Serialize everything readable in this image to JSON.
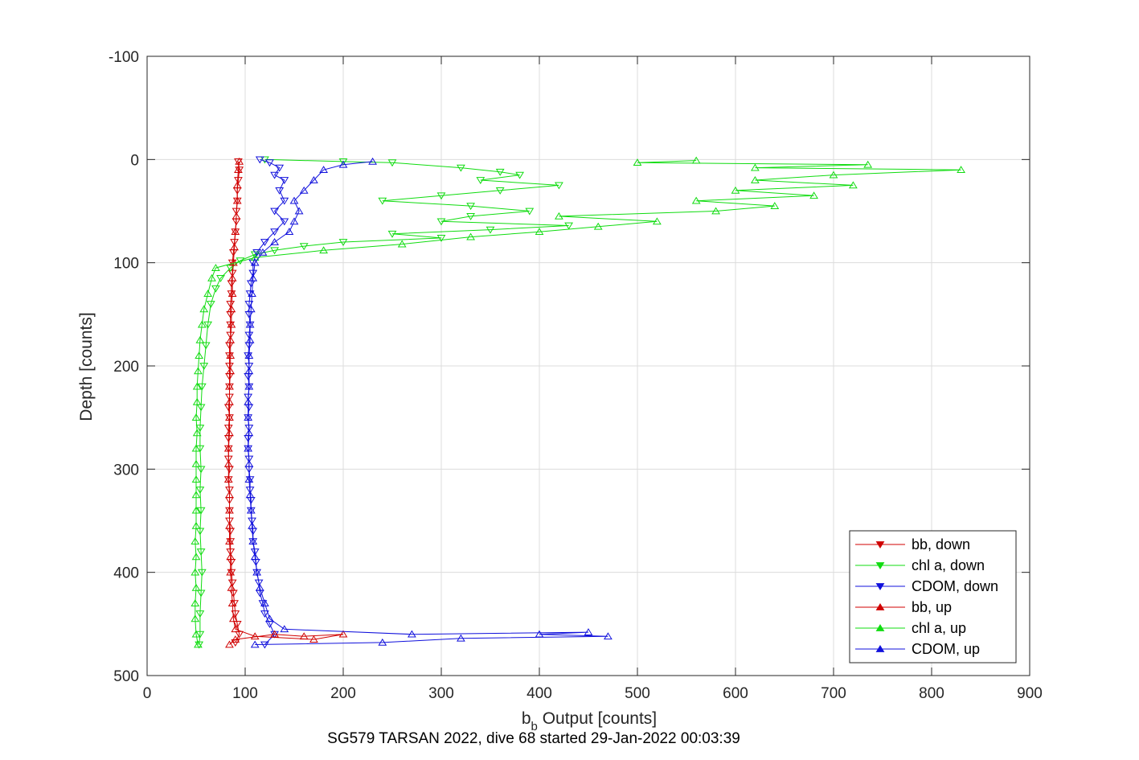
{
  "chart_data": {
    "type": "line",
    "title": "",
    "subtitle": "SG579 TARSAN 2022, dive 68 started 29-Jan-2022 00:03:39",
    "xlabel_main": "b",
    "xlabel_sub": "b",
    "xlabel_rest": " Output [counts]",
    "ylabel": "Depth [counts]",
    "xlim": [
      0,
      900
    ],
    "ylim": [
      -100,
      500
    ],
    "y_reversed": true,
    "grid": true,
    "legend_placement": "bottom-right",
    "xticks": [
      "0",
      "100",
      "200",
      "300",
      "400",
      "500",
      "600",
      "700",
      "800",
      "900"
    ],
    "yticks": [
      "-100",
      "0",
      "100",
      "200",
      "300",
      "400",
      "500"
    ],
    "series": [
      {
        "name": "bb, down",
        "color": "#d00000",
        "marker": "triangle-down",
        "points": [
          [
            93,
            2
          ],
          [
            94,
            10
          ],
          [
            93,
            20
          ],
          [
            92,
            30
          ],
          [
            92,
            40
          ],
          [
            91,
            50
          ],
          [
            91,
            60
          ],
          [
            90,
            70
          ],
          [
            89,
            80
          ],
          [
            88,
            90
          ],
          [
            87,
            100
          ],
          [
            87,
            110
          ],
          [
            86,
            120
          ],
          [
            86,
            130
          ],
          [
            85,
            140
          ],
          [
            85,
            150
          ],
          [
            85,
            160
          ],
          [
            85,
            170
          ],
          [
            84,
            180
          ],
          [
            84,
            190
          ],
          [
            84,
            200
          ],
          [
            84,
            210
          ],
          [
            84,
            220
          ],
          [
            84,
            230
          ],
          [
            83,
            240
          ],
          [
            84,
            250
          ],
          [
            83,
            260
          ],
          [
            83,
            270
          ],
          [
            83,
            280
          ],
          [
            83,
            290
          ],
          [
            84,
            300
          ],
          [
            83,
            310
          ],
          [
            84,
            320
          ],
          [
            84,
            330
          ],
          [
            84,
            340
          ],
          [
            84,
            350
          ],
          [
            85,
            360
          ],
          [
            85,
            370
          ],
          [
            85,
            380
          ],
          [
            86,
            390
          ],
          [
            86,
            400
          ],
          [
            87,
            410
          ],
          [
            88,
            420
          ],
          [
            89,
            430
          ],
          [
            90,
            440
          ],
          [
            92,
            450
          ],
          [
            94,
            460
          ],
          [
            90,
            468
          ]
        ]
      },
      {
        "name": "chl a, down",
        "color": "#10dc10",
        "marker": "triangle-down",
        "points": [
          [
            120,
            0
          ],
          [
            200,
            2
          ],
          [
            250,
            3
          ],
          [
            320,
            8
          ],
          [
            360,
            12
          ],
          [
            380,
            15
          ],
          [
            340,
            20
          ],
          [
            420,
            25
          ],
          [
            360,
            30
          ],
          [
            300,
            35
          ],
          [
            240,
            40
          ],
          [
            330,
            45
          ],
          [
            390,
            50
          ],
          [
            330,
            55
          ],
          [
            300,
            60
          ],
          [
            430,
            64
          ],
          [
            350,
            68
          ],
          [
            250,
            72
          ],
          [
            300,
            76
          ],
          [
            200,
            80
          ],
          [
            160,
            84
          ],
          [
            130,
            88
          ],
          [
            110,
            92
          ],
          [
            95,
            98
          ],
          [
            85,
            105
          ],
          [
            75,
            115
          ],
          [
            70,
            125
          ],
          [
            65,
            140
          ],
          [
            62,
            160
          ],
          [
            60,
            180
          ],
          [
            58,
            200
          ],
          [
            56,
            220
          ],
          [
            55,
            240
          ],
          [
            54,
            260
          ],
          [
            54,
            280
          ],
          [
            55,
            300
          ],
          [
            54,
            320
          ],
          [
            55,
            340
          ],
          [
            54,
            360
          ],
          [
            55,
            380
          ],
          [
            56,
            400
          ],
          [
            55,
            420
          ],
          [
            54,
            440
          ],
          [
            54,
            460
          ],
          [
            53,
            470
          ]
        ]
      },
      {
        "name": "CDOM, down",
        "color": "#1010dc",
        "marker": "triangle-down",
        "points": [
          [
            115,
            0
          ],
          [
            125,
            3
          ],
          [
            135,
            8
          ],
          [
            130,
            15
          ],
          [
            140,
            20
          ],
          [
            135,
            30
          ],
          [
            140,
            40
          ],
          [
            130,
            50
          ],
          [
            140,
            60
          ],
          [
            130,
            70
          ],
          [
            120,
            80
          ],
          [
            112,
            90
          ],
          [
            108,
            100
          ],
          [
            108,
            110
          ],
          [
            106,
            120
          ],
          [
            105,
            130
          ],
          [
            104,
            140
          ],
          [
            104,
            150
          ],
          [
            105,
            160
          ],
          [
            104,
            170
          ],
          [
            104,
            180
          ],
          [
            103,
            190
          ],
          [
            104,
            200
          ],
          [
            103,
            210
          ],
          [
            104,
            220
          ],
          [
            103,
            230
          ],
          [
            104,
            240
          ],
          [
            103,
            250
          ],
          [
            104,
            260
          ],
          [
            103,
            270
          ],
          [
            103,
            280
          ],
          [
            104,
            290
          ],
          [
            104,
            300
          ],
          [
            105,
            310
          ],
          [
            105,
            320
          ],
          [
            106,
            330
          ],
          [
            106,
            340
          ],
          [
            107,
            350
          ],
          [
            108,
            360
          ],
          [
            108,
            370
          ],
          [
            110,
            380
          ],
          [
            111,
            390
          ],
          [
            112,
            400
          ],
          [
            114,
            410
          ],
          [
            115,
            420
          ],
          [
            118,
            430
          ],
          [
            120,
            440
          ],
          [
            125,
            450
          ],
          [
            130,
            460
          ],
          [
            120,
            470
          ]
        ]
      },
      {
        "name": "bb, up",
        "color": "#d00000",
        "marker": "triangle-up",
        "points": [
          [
            84,
            470
          ],
          [
            90,
            465
          ],
          [
            130,
            460
          ],
          [
            160,
            462
          ],
          [
            200,
            460
          ],
          [
            170,
            465
          ],
          [
            110,
            462
          ],
          [
            90,
            455
          ],
          [
            88,
            445
          ],
          [
            87,
            430
          ],
          [
            86,
            415
          ],
          [
            85,
            400
          ],
          [
            85,
            385
          ],
          [
            84,
            370
          ],
          [
            84,
            355
          ],
          [
            84,
            340
          ],
          [
            84,
            325
          ],
          [
            83,
            310
          ],
          [
            83,
            295
          ],
          [
            83,
            280
          ],
          [
            84,
            265
          ],
          [
            84,
            250
          ],
          [
            84,
            235
          ],
          [
            84,
            220
          ],
          [
            85,
            205
          ],
          [
            85,
            190
          ],
          [
            85,
            175
          ],
          [
            86,
            160
          ],
          [
            86,
            145
          ],
          [
            87,
            130
          ],
          [
            87,
            115
          ],
          [
            88,
            100
          ],
          [
            89,
            85
          ],
          [
            90,
            70
          ],
          [
            91,
            55
          ],
          [
            92,
            40
          ],
          [
            92,
            25
          ],
          [
            93,
            10
          ],
          [
            94,
            2
          ]
        ]
      },
      {
        "name": "chl a, up",
        "color": "#10dc10",
        "marker": "triangle-up",
        "points": [
          [
            52,
            470
          ],
          [
            50,
            460
          ],
          [
            49,
            445
          ],
          [
            49,
            430
          ],
          [
            50,
            415
          ],
          [
            49,
            400
          ],
          [
            50,
            385
          ],
          [
            49,
            370
          ],
          [
            50,
            355
          ],
          [
            50,
            340
          ],
          [
            50,
            325
          ],
          [
            50,
            310
          ],
          [
            50,
            295
          ],
          [
            50,
            280
          ],
          [
            51,
            265
          ],
          [
            50,
            250
          ],
          [
            51,
            235
          ],
          [
            51,
            220
          ],
          [
            52,
            205
          ],
          [
            53,
            190
          ],
          [
            54,
            175
          ],
          [
            56,
            160
          ],
          [
            58,
            145
          ],
          [
            62,
            130
          ],
          [
            66,
            115
          ],
          [
            70,
            105
          ],
          [
            110,
            95
          ],
          [
            180,
            88
          ],
          [
            260,
            82
          ],
          [
            330,
            75
          ],
          [
            400,
            70
          ],
          [
            460,
            65
          ],
          [
            520,
            60
          ],
          [
            420,
            55
          ],
          [
            580,
            50
          ],
          [
            640,
            45
          ],
          [
            560,
            40
          ],
          [
            680,
            35
          ],
          [
            600,
            30
          ],
          [
            720,
            25
          ],
          [
            620,
            20
          ],
          [
            700,
            15
          ],
          [
            830,
            10
          ],
          [
            620,
            8
          ],
          [
            735,
            5
          ],
          [
            500,
            3
          ],
          [
            560,
            1
          ]
        ]
      },
      {
        "name": "CDOM, up",
        "color": "#1010dc",
        "marker": "triangle-up",
        "points": [
          [
            110,
            470
          ],
          [
            240,
            468
          ],
          [
            320,
            464
          ],
          [
            470,
            462
          ],
          [
            400,
            460
          ],
          [
            450,
            458
          ],
          [
            270,
            460
          ],
          [
            140,
            455
          ],
          [
            125,
            445
          ],
          [
            120,
            430
          ],
          [
            115,
            415
          ],
          [
            112,
            400
          ],
          [
            110,
            385
          ],
          [
            108,
            370
          ],
          [
            107,
            355
          ],
          [
            106,
            340
          ],
          [
            105,
            325
          ],
          [
            104,
            310
          ],
          [
            104,
            295
          ],
          [
            103,
            280
          ],
          [
            104,
            265
          ],
          [
            103,
            250
          ],
          [
            103,
            235
          ],
          [
            104,
            220
          ],
          [
            104,
            205
          ],
          [
            104,
            190
          ],
          [
            105,
            175
          ],
          [
            105,
            160
          ],
          [
            106,
            145
          ],
          [
            107,
            130
          ],
          [
            108,
            115
          ],
          [
            110,
            100
          ],
          [
            118,
            90
          ],
          [
            130,
            80
          ],
          [
            145,
            70
          ],
          [
            150,
            60
          ],
          [
            155,
            50
          ],
          [
            150,
            40
          ],
          [
            160,
            30
          ],
          [
            170,
            20
          ],
          [
            180,
            10
          ],
          [
            200,
            5
          ],
          [
            230,
            2
          ]
        ]
      }
    ]
  }
}
